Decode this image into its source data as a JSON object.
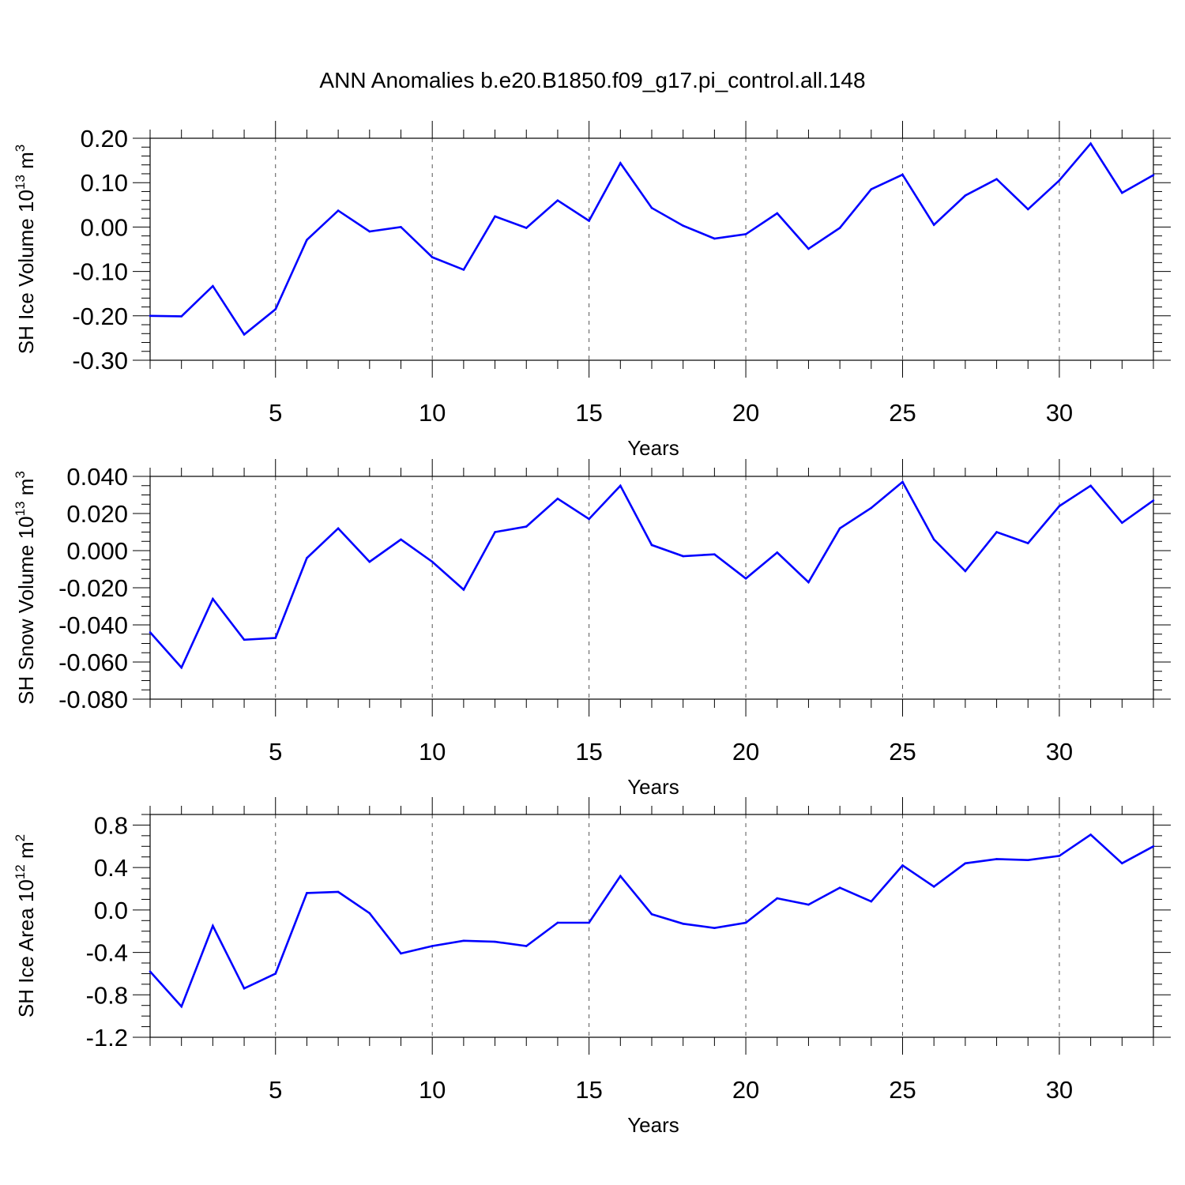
{
  "title": "ANN Anomalies b.e20.B1850.f09_g17.pi_control.all.148",
  "colors": {
    "line": "#0000ff",
    "axis": "#000000",
    "grid": "#555555",
    "background": "#ffffff"
  },
  "chart_data": [
    {
      "type": "line",
      "ylabel": "SH Ice Volume",
      "units": {
        "base": "10",
        "exp": "13",
        "unit": "m",
        "unit_exp": "3"
      },
      "xlabel": "Years",
      "xlim": [
        1,
        33
      ],
      "ylim": [
        -0.3,
        0.2
      ],
      "yticks": [
        0.2,
        0.1,
        0.0,
        -0.1,
        -0.2,
        -0.3
      ],
      "ytick_labels": [
        "0.20",
        "0.10",
        "0.00",
        "-0.10",
        "-0.20",
        "-0.30"
      ],
      "yminor": 0.02,
      "xticks": [
        5,
        10,
        15,
        20,
        25,
        30
      ],
      "xtick_labels": [
        "5",
        "10",
        "15",
        "20",
        "25",
        "30"
      ],
      "grid": "vertical-dashed",
      "x": [
        1,
        2,
        3,
        4,
        5,
        6,
        7,
        8,
        9,
        10,
        11,
        12,
        13,
        14,
        15,
        16,
        17,
        18,
        19,
        20,
        21,
        22,
        23,
        24,
        25,
        26,
        27,
        28,
        29,
        30,
        31,
        32,
        33
      ],
      "values": [
        -0.2,
        -0.201,
        -0.133,
        -0.242,
        -0.185,
        -0.029,
        0.037,
        -0.01,
        0.0,
        -0.068,
        -0.096,
        0.024,
        -0.002,
        0.06,
        0.014,
        0.144,
        0.043,
        0.003,
        -0.026,
        -0.016,
        0.031,
        -0.049,
        -0.002,
        0.085,
        0.118,
        0.005,
        0.071,
        0.108,
        0.04,
        0.105,
        0.188,
        0.077,
        0.117
      ]
    },
    {
      "type": "line",
      "ylabel": "SH Snow Volume",
      "units": {
        "base": "10",
        "exp": "13",
        "unit": "m",
        "unit_exp": "3"
      },
      "xlabel": "Years",
      "xlim": [
        1,
        33
      ],
      "ylim": [
        -0.08,
        0.04
      ],
      "yticks": [
        0.04,
        0.02,
        0.0,
        -0.02,
        -0.04,
        -0.06,
        -0.08
      ],
      "ytick_labels": [
        "0.040",
        "0.020",
        "0.000",
        "-0.020",
        "-0.040",
        "-0.060",
        "-0.080"
      ],
      "yminor": 0.005,
      "xticks": [
        5,
        10,
        15,
        20,
        25,
        30
      ],
      "xtick_labels": [
        "5",
        "10",
        "15",
        "20",
        "25",
        "30"
      ],
      "grid": "vertical-dashed",
      "x": [
        1,
        2,
        3,
        4,
        5,
        6,
        7,
        8,
        9,
        10,
        11,
        12,
        13,
        14,
        15,
        16,
        17,
        18,
        19,
        20,
        21,
        22,
        23,
        24,
        25,
        26,
        27,
        28,
        29,
        30,
        31,
        32,
        33
      ],
      "values": [
        -0.044,
        -0.063,
        -0.026,
        -0.048,
        -0.047,
        -0.004,
        0.012,
        -0.006,
        0.006,
        -0.006,
        -0.021,
        0.01,
        0.013,
        0.028,
        0.017,
        0.035,
        0.003,
        -0.003,
        -0.002,
        -0.015,
        -0.001,
        -0.017,
        0.012,
        0.023,
        0.037,
        0.006,
        -0.011,
        0.01,
        0.004,
        0.024,
        0.035,
        0.015,
        0.027
      ]
    },
    {
      "type": "line",
      "ylabel": "SH Ice Area",
      "units": {
        "base": "10",
        "exp": "12",
        "unit": "m",
        "unit_exp": "2"
      },
      "xlabel": "Years",
      "xlim": [
        1,
        33
      ],
      "ylim": [
        -1.2,
        0.9
      ],
      "yticks": [
        0.8,
        0.4,
        0.0,
        -0.4,
        -0.8,
        -1.2
      ],
      "ytick_labels": [
        "0.8",
        "0.4",
        "0.0",
        "-0.4",
        "-0.8",
        "-1.2"
      ],
      "yminor": 0.1,
      "xticks": [
        5,
        10,
        15,
        20,
        25,
        30
      ],
      "xtick_labels": [
        "5",
        "10",
        "15",
        "20",
        "25",
        "30"
      ],
      "grid": "vertical-dashed",
      "x": [
        1,
        2,
        3,
        4,
        5,
        6,
        7,
        8,
        9,
        10,
        11,
        12,
        13,
        14,
        15,
        16,
        17,
        18,
        19,
        20,
        21,
        22,
        23,
        24,
        25,
        26,
        27,
        28,
        29,
        30,
        31,
        32,
        33
      ],
      "values": [
        -0.58,
        -0.91,
        -0.15,
        -0.74,
        -0.6,
        0.16,
        0.17,
        -0.03,
        -0.41,
        -0.34,
        -0.29,
        -0.3,
        -0.34,
        -0.12,
        -0.12,
        0.32,
        -0.04,
        -0.13,
        -0.17,
        -0.12,
        0.11,
        0.05,
        0.21,
        0.08,
        0.42,
        0.22,
        0.44,
        0.48,
        0.47,
        0.51,
        0.71,
        0.44,
        0.6
      ]
    }
  ]
}
